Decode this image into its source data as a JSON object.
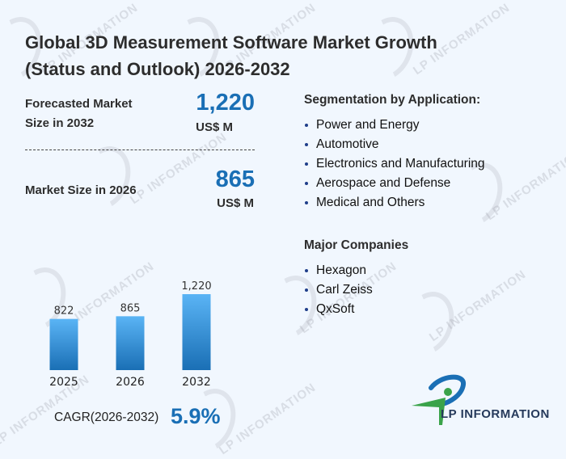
{
  "header": {
    "title_line1": "Global 3D Measurement Software Market Growth",
    "title_line2": "(Status and Outlook) 2026-2032"
  },
  "stats": {
    "forecast": {
      "label_line1": "Forecasted Market",
      "label_line2": "Size in 2032",
      "value": "1,220",
      "unit": "US$ M"
    },
    "current": {
      "label": "Market Size in 2026",
      "value": "865",
      "unit": "US$ M"
    }
  },
  "segmentation": {
    "title": "Segmentation by Application:",
    "items": [
      "Power and Energy",
      "Automotive",
      "Electronics and Manufacturing",
      "Aerospace and Defense",
      "Medical and Others"
    ]
  },
  "companies": {
    "title": "Major Companies",
    "items": [
      "Hexagon",
      "Carl Zeiss",
      "QxSoft"
    ]
  },
  "cagr": {
    "label": "CAGR(2026-2032)",
    "value": "5.9%"
  },
  "logo": {
    "text": "LP INFORMATION",
    "colors": {
      "green": "#3aa34a",
      "blue": "#1a6fb5"
    }
  },
  "watermark": {
    "text": "LP INFORMATION"
  },
  "colors": {
    "accent": "#1a6fb5",
    "bar_top": "#5ab4f5",
    "bar_bottom": "#1a6fb5",
    "background": "#f1f7fe"
  },
  "chart_data": {
    "type": "bar",
    "title": "",
    "categories": [
      "2025",
      "2026",
      "2032"
    ],
    "values": [
      822,
      865,
      1220
    ],
    "value_labels": [
      "822",
      "865",
      "1,220"
    ],
    "xlabel": "",
    "ylabel": "",
    "ylim": [
      0,
      1220
    ],
    "grid": false,
    "unit": "US$ M"
  }
}
